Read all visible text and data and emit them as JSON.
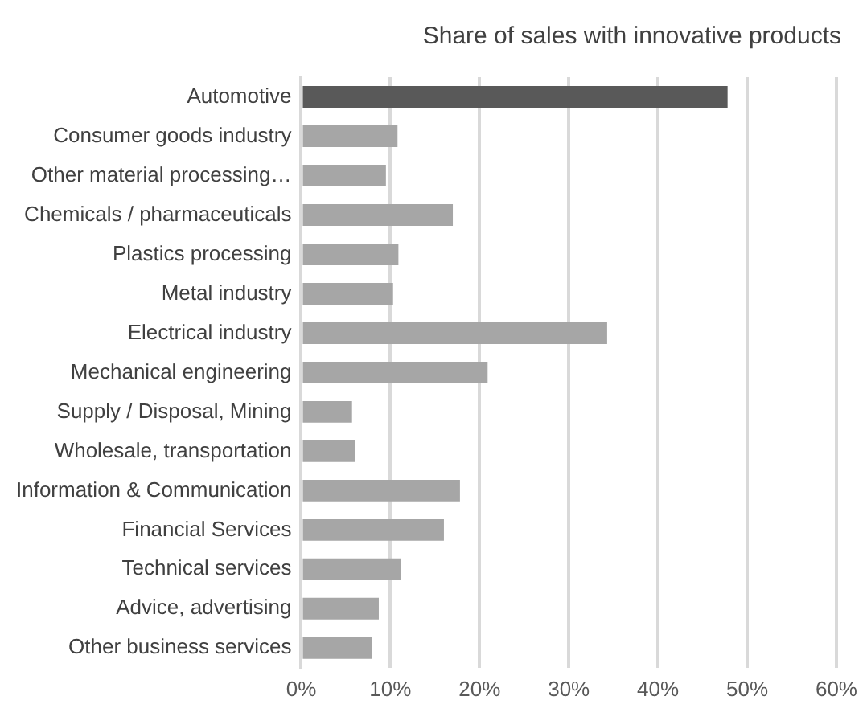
{
  "chart_data": {
    "type": "bar",
    "orientation": "horizontal",
    "title": "Share of sales with innovative products",
    "categories": [
      "Automotive",
      "Consumer goods industry",
      "Other material processing…",
      "Chemicals / pharmaceuticals",
      "Plastics processing",
      "Metal industry",
      "Electrical industry",
      "Mechanical engineering",
      "Supply / Disposal, Mining",
      "Wholesale, transportation",
      "Information & Communication",
      "Financial Services",
      "Technical services",
      "Advice, advertising",
      "Other business services"
    ],
    "values": [
      47.8,
      10.8,
      9.5,
      17.0,
      10.9,
      10.3,
      34.3,
      20.9,
      5.7,
      6.0,
      17.8,
      16.0,
      11.2,
      8.7,
      7.9
    ],
    "colors": [
      "#595959",
      "#a6a6a6",
      "#a6a6a6",
      "#a6a6a6",
      "#a6a6a6",
      "#a6a6a6",
      "#a6a6a6",
      "#a6a6a6",
      "#a6a6a6",
      "#a6a6a6",
      "#a6a6a6",
      "#a6a6a6",
      "#a6a6a6",
      "#a6a6a6",
      "#a6a6a6"
    ],
    "xlim": [
      0,
      60
    ],
    "xticks": [
      {
        "value": 0,
        "label": "0%"
      },
      {
        "value": 10,
        "label": "10%"
      },
      {
        "value": 20,
        "label": "20%"
      },
      {
        "value": 30,
        "label": "30%"
      },
      {
        "value": 40,
        "label": "40%"
      },
      {
        "value": 50,
        "label": "50%"
      },
      {
        "value": 60,
        "label": "60%"
      }
    ],
    "grid": "x",
    "legend": false
  }
}
